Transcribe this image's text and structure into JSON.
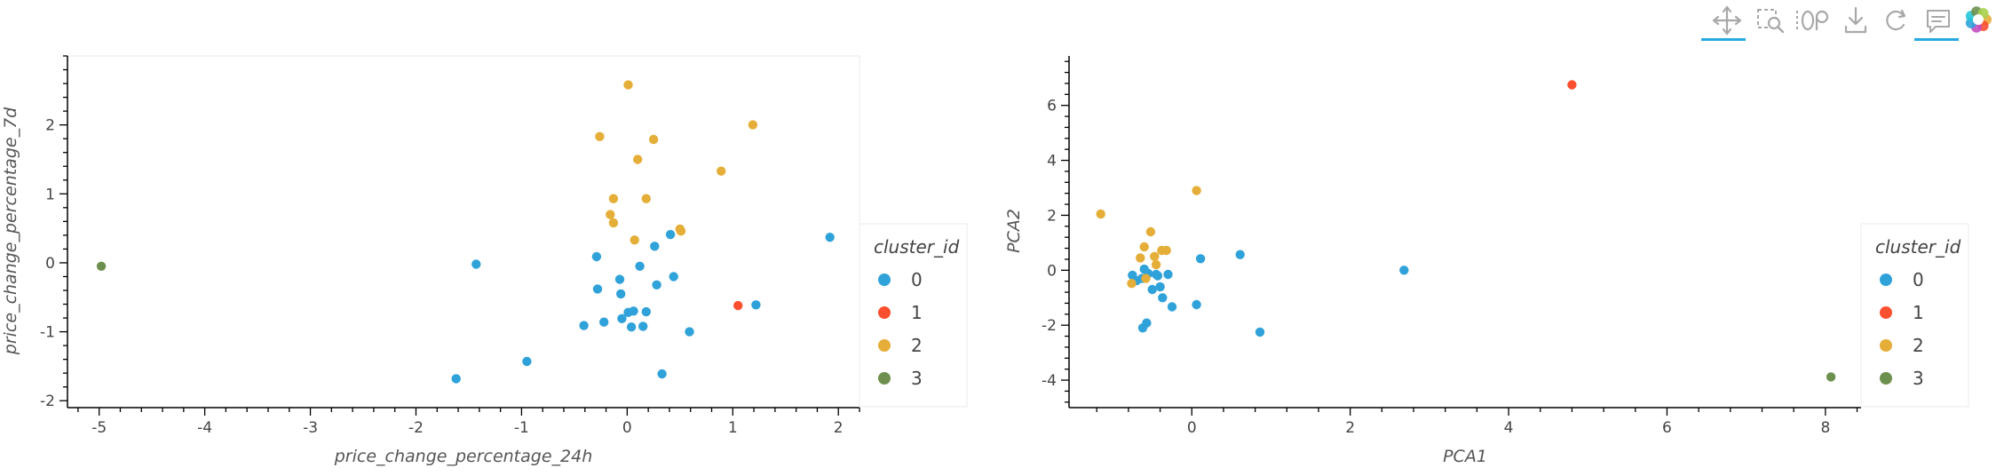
{
  "toolbar": {
    "tools": [
      {
        "name": "pan-tool",
        "icon": "move-arrows-icon",
        "active": true
      },
      {
        "name": "box-zoom-tool",
        "icon": "box-zoom-icon",
        "active": false
      },
      {
        "name": "wheel-zoom-tool",
        "icon": "wheel-zoom-icon",
        "active": false
      },
      {
        "name": "save-tool",
        "icon": "download-icon",
        "active": false
      },
      {
        "name": "reset-tool",
        "icon": "reset-icon",
        "active": false
      },
      {
        "name": "hover-tool",
        "icon": "hover-comment-icon",
        "active": true
      },
      {
        "name": "bokeh-logo",
        "icon": "bokeh-logo-icon",
        "active": false
      }
    ],
    "active_color": "#26aae1"
  },
  "legend": {
    "title": "cluster_id",
    "entries": [
      "0",
      "1",
      "2",
      "3"
    ],
    "colors": [
      "#30a2da",
      "#fc4f30",
      "#e5ae38",
      "#6d904f"
    ]
  },
  "chart_data": [
    {
      "type": "scatter",
      "title": "",
      "xlabel": "price_change_percentage_24h",
      "ylabel": "price_change_percentage_7d",
      "xlim": [
        -5.3,
        2.2
      ],
      "ylim": [
        -2.1,
        3.0
      ],
      "xticks": [
        -5,
        -4,
        -3,
        -2,
        -1,
        0,
        1,
        2
      ],
      "yticks": [
        -2,
        -1,
        0,
        1,
        2
      ],
      "grid": false,
      "legend_position": "right",
      "series": [
        {
          "name": "0",
          "color": "#30a2da",
          "points": [
            [
              -1.43,
              -0.02
            ],
            [
              -0.95,
              -1.43
            ],
            [
              -1.62,
              -1.68
            ],
            [
              -0.41,
              -0.91
            ],
            [
              -0.28,
              -0.38
            ],
            [
              -0.29,
              0.09
            ],
            [
              -0.22,
              -0.86
            ],
            [
              -0.07,
              -0.24
            ],
            [
              -0.06,
              -0.45
            ],
            [
              -0.05,
              -0.81
            ],
            [
              0.01,
              -0.72
            ],
            [
              0.06,
              -0.7
            ],
            [
              0.04,
              -0.93
            ],
            [
              0.12,
              -0.05
            ],
            [
              0.15,
              -0.92
            ],
            [
              0.18,
              -0.71
            ],
            [
              0.26,
              0.24
            ],
            [
              0.28,
              -0.32
            ],
            [
              0.33,
              -1.61
            ],
            [
              0.41,
              0.41
            ],
            [
              0.44,
              -0.2
            ],
            [
              0.59,
              -1.0
            ],
            [
              1.22,
              -0.61
            ],
            [
              1.92,
              0.37
            ]
          ]
        },
        {
          "name": "1",
          "color": "#fc4f30",
          "points": [
            [
              1.05,
              -0.62
            ]
          ]
        },
        {
          "name": "2",
          "color": "#e5ae38",
          "points": [
            [
              0.01,
              2.58
            ],
            [
              -0.26,
              1.83
            ],
            [
              0.25,
              1.79
            ],
            [
              0.1,
              1.5
            ],
            [
              1.19,
              2.0
            ],
            [
              0.89,
              1.33
            ],
            [
              -0.13,
              0.93
            ],
            [
              0.18,
              0.93
            ],
            [
              -0.16,
              0.7
            ],
            [
              -0.13,
              0.58
            ],
            [
              0.07,
              0.33
            ],
            [
              0.5,
              0.49
            ],
            [
              0.51,
              0.46
            ]
          ]
        },
        {
          "name": "3",
          "color": "#6d904f",
          "points": [
            [
              -4.98,
              -0.05
            ]
          ]
        }
      ]
    },
    {
      "type": "scatter",
      "title": "",
      "xlabel": "PCA1",
      "ylabel": "PCA2",
      "xlim": [
        -1.55,
        8.45
      ],
      "ylim": [
        -5.0,
        7.8
      ],
      "xticks": [
        0,
        2,
        4,
        6,
        8
      ],
      "yticks": [
        -4,
        -2,
        0,
        2,
        4,
        6
      ],
      "grid": false,
      "legend_position": "right",
      "series": [
        {
          "name": "0",
          "color": "#30a2da",
          "points": [
            [
              -0.75,
              -0.18
            ],
            [
              -0.7,
              -0.38
            ],
            [
              -0.63,
              -0.3
            ],
            [
              -0.6,
              0.04
            ],
            [
              -0.55,
              -0.12
            ],
            [
              -0.5,
              -0.7
            ],
            [
              -0.45,
              -0.15
            ],
            [
              -0.4,
              -0.6
            ],
            [
              -0.37,
              -1.0
            ],
            [
              -0.3,
              -0.15
            ],
            [
              -0.25,
              -1.33
            ],
            [
              -0.62,
              -2.1
            ],
            [
              -0.57,
              -1.92
            ],
            [
              0.06,
              -1.25
            ],
            [
              0.11,
              0.42
            ],
            [
              0.61,
              0.57
            ],
            [
              0.86,
              -2.25
            ],
            [
              2.68,
              0.0
            ],
            [
              -0.43,
              -0.2
            ]
          ]
        },
        {
          "name": "1",
          "color": "#fc4f30",
          "points": [
            [
              4.8,
              6.75
            ]
          ]
        },
        {
          "name": "2",
          "color": "#e5ae38",
          "points": [
            [
              -1.15,
              2.05
            ],
            [
              0.06,
              2.9
            ],
            [
              -0.52,
              1.4
            ],
            [
              -0.6,
              0.85
            ],
            [
              -0.47,
              0.5
            ],
            [
              -0.38,
              0.72
            ],
            [
              -0.32,
              0.72
            ],
            [
              -0.45,
              0.2
            ],
            [
              -0.65,
              0.45
            ],
            [
              -0.76,
              -0.48
            ],
            [
              -0.58,
              -0.3
            ]
          ]
        },
        {
          "name": "3",
          "color": "#6d904f",
          "points": [
            [
              8.07,
              -3.88
            ]
          ]
        }
      ]
    }
  ]
}
